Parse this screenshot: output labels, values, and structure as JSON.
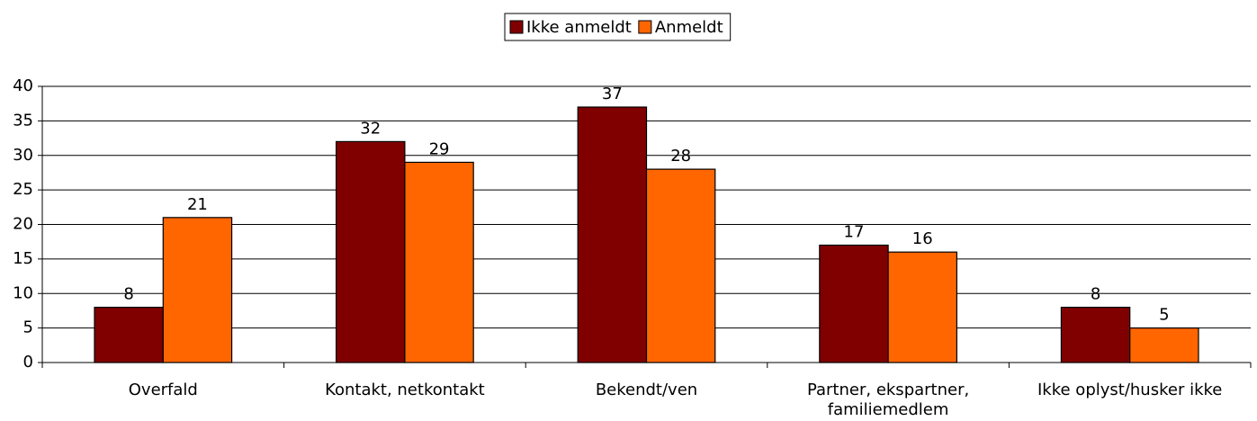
{
  "chart_data": {
    "type": "bar",
    "categories": [
      "Overfald",
      "Kontakt, netkontakt",
      "Bekendt/ven",
      "Partner, ekspartner, familiemedlem",
      "Ikke oplyst/husker ikke"
    ],
    "series": [
      {
        "name": "Ikke anmeldt",
        "color": "#800000",
        "values": [
          8,
          32,
          37,
          17,
          8
        ]
      },
      {
        "name": "Anmeldt",
        "color": "#ff6600",
        "values": [
          21,
          29,
          28,
          16,
          5
        ]
      }
    ],
    "ylim": [
      0,
      40
    ],
    "yticks": [
      0,
      5,
      10,
      15,
      20,
      25,
      30,
      35,
      40
    ],
    "grid": true,
    "legend": "top"
  }
}
